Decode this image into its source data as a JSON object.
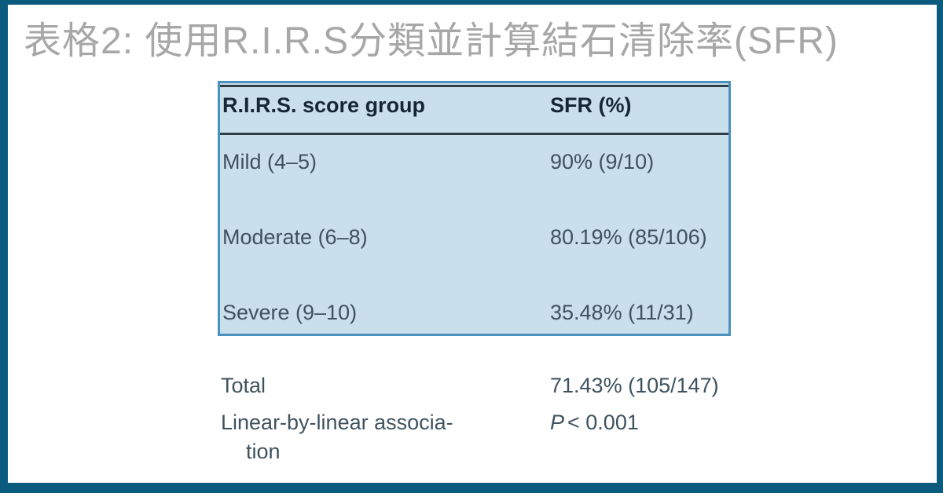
{
  "page": {
    "title": "表格2: 使用R.I.R.S分類並計算結石清除率(SFR)",
    "colors": {
      "frame_border": "#0b5b7e",
      "title_text": "#a7a7a7",
      "table_fill": "#c9dfec",
      "table_border": "#4a91be",
      "rule": "#2f3e49",
      "header_text": "#152733",
      "body_text": "#3f525e"
    }
  },
  "table": {
    "headers": [
      "R.I.R.S. score group",
      "SFR (%)"
    ],
    "rows": [
      {
        "group": "Mild (4–5)",
        "sfr": "90% (9/10)"
      },
      {
        "group": "Moderate (6–8)",
        "sfr": "80.19% (85/106)"
      },
      {
        "group": "Severe (9–10)",
        "sfr": "35.48% (11/31)"
      }
    ],
    "footer": {
      "total_label": "Total",
      "total_value": "71.43% (105/147)",
      "assoc_label_line1": "Linear-by-linear associa-",
      "assoc_label_line2": "tion",
      "p_symbol": "P",
      "p_value": "< 0.001"
    }
  }
}
